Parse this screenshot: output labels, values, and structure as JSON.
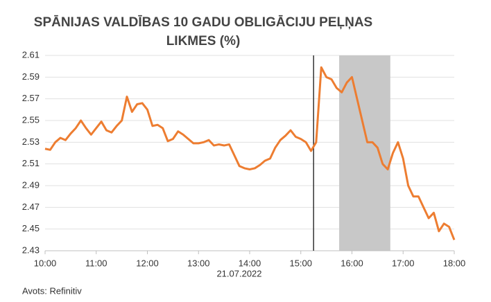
{
  "chart_data": {
    "type": "line",
    "title": [
      "SPĀNIJAS VALDĪBAS 10 GADU OBLIGĀCIJU PEĻŅAS",
      "LIKMES (%)"
    ],
    "x_caption": "21.07.2022",
    "source": "Avots: Refinitiv",
    "x": [
      10.0,
      10.1,
      10.2,
      10.3,
      10.4,
      10.5,
      10.6,
      10.7,
      10.8,
      10.9,
      11.0,
      11.1,
      11.2,
      11.3,
      11.4,
      11.5,
      11.6,
      11.7,
      11.8,
      11.9,
      12.0,
      12.1,
      12.2,
      12.3,
      12.4,
      12.5,
      12.6,
      12.7,
      12.8,
      12.9,
      13.0,
      13.1,
      13.2,
      13.3,
      13.4,
      13.5,
      13.6,
      13.7,
      13.8,
      13.9,
      14.0,
      14.1,
      14.2,
      14.3,
      14.4,
      14.5,
      14.6,
      14.7,
      14.8,
      14.9,
      15.0,
      15.1,
      15.2,
      15.3,
      15.4,
      15.5,
      15.6,
      15.7,
      15.8,
      15.9,
      16.0,
      16.1,
      16.2,
      16.3,
      16.4,
      16.5,
      16.6,
      16.7,
      16.8,
      16.9,
      17.0,
      17.1,
      17.2,
      17.3,
      17.4,
      17.5,
      17.6,
      17.7,
      17.8,
      17.9,
      18.0
    ],
    "values": [
      2.524,
      2.523,
      2.53,
      2.534,
      2.532,
      2.538,
      2.543,
      2.55,
      2.543,
      2.537,
      2.543,
      2.549,
      2.541,
      2.539,
      2.545,
      2.55,
      2.572,
      2.558,
      2.565,
      2.566,
      2.56,
      2.545,
      2.546,
      2.543,
      2.531,
      2.533,
      2.54,
      2.537,
      2.533,
      2.529,
      2.529,
      2.53,
      2.532,
      2.527,
      2.528,
      2.527,
      2.528,
      2.518,
      2.508,
      2.506,
      2.505,
      2.506,
      2.509,
      2.513,
      2.515,
      2.525,
      2.532,
      2.536,
      2.541,
      2.535,
      2.533,
      2.53,
      2.522,
      2.53,
      2.599,
      2.59,
      2.588,
      2.58,
      2.576,
      2.585,
      2.59,
      2.57,
      2.55,
      2.53,
      2.53,
      2.525,
      2.51,
      2.505,
      2.52,
      2.53,
      2.515,
      2.49,
      2.48,
      2.48,
      2.47,
      2.46,
      2.465,
      2.448,
      2.455,
      2.452,
      2.44
    ],
    "color": "#ed7d31",
    "xlim": [
      10,
      18
    ],
    "xticks": [
      {
        "value": 10,
        "label": "10:00"
      },
      {
        "value": 11,
        "label": "11:00"
      },
      {
        "value": 12,
        "label": "12:00"
      },
      {
        "value": 13,
        "label": "13:00"
      },
      {
        "value": 14,
        "label": "14:00"
      },
      {
        "value": 15,
        "label": "15:00"
      },
      {
        "value": 16,
        "label": "16:00"
      },
      {
        "value": 17,
        "label": "17:00"
      },
      {
        "value": 18,
        "label": "18:00"
      }
    ],
    "ylim": [
      2.43,
      2.61
    ],
    "yticks": [
      2.43,
      2.45,
      2.47,
      2.49,
      2.51,
      2.53,
      2.55,
      2.57,
      2.59,
      2.61
    ],
    "grid": true,
    "vline_x": 15.25,
    "shaded_x": [
      15.75,
      16.75
    ],
    "shade_color": "#c8c8c8"
  }
}
